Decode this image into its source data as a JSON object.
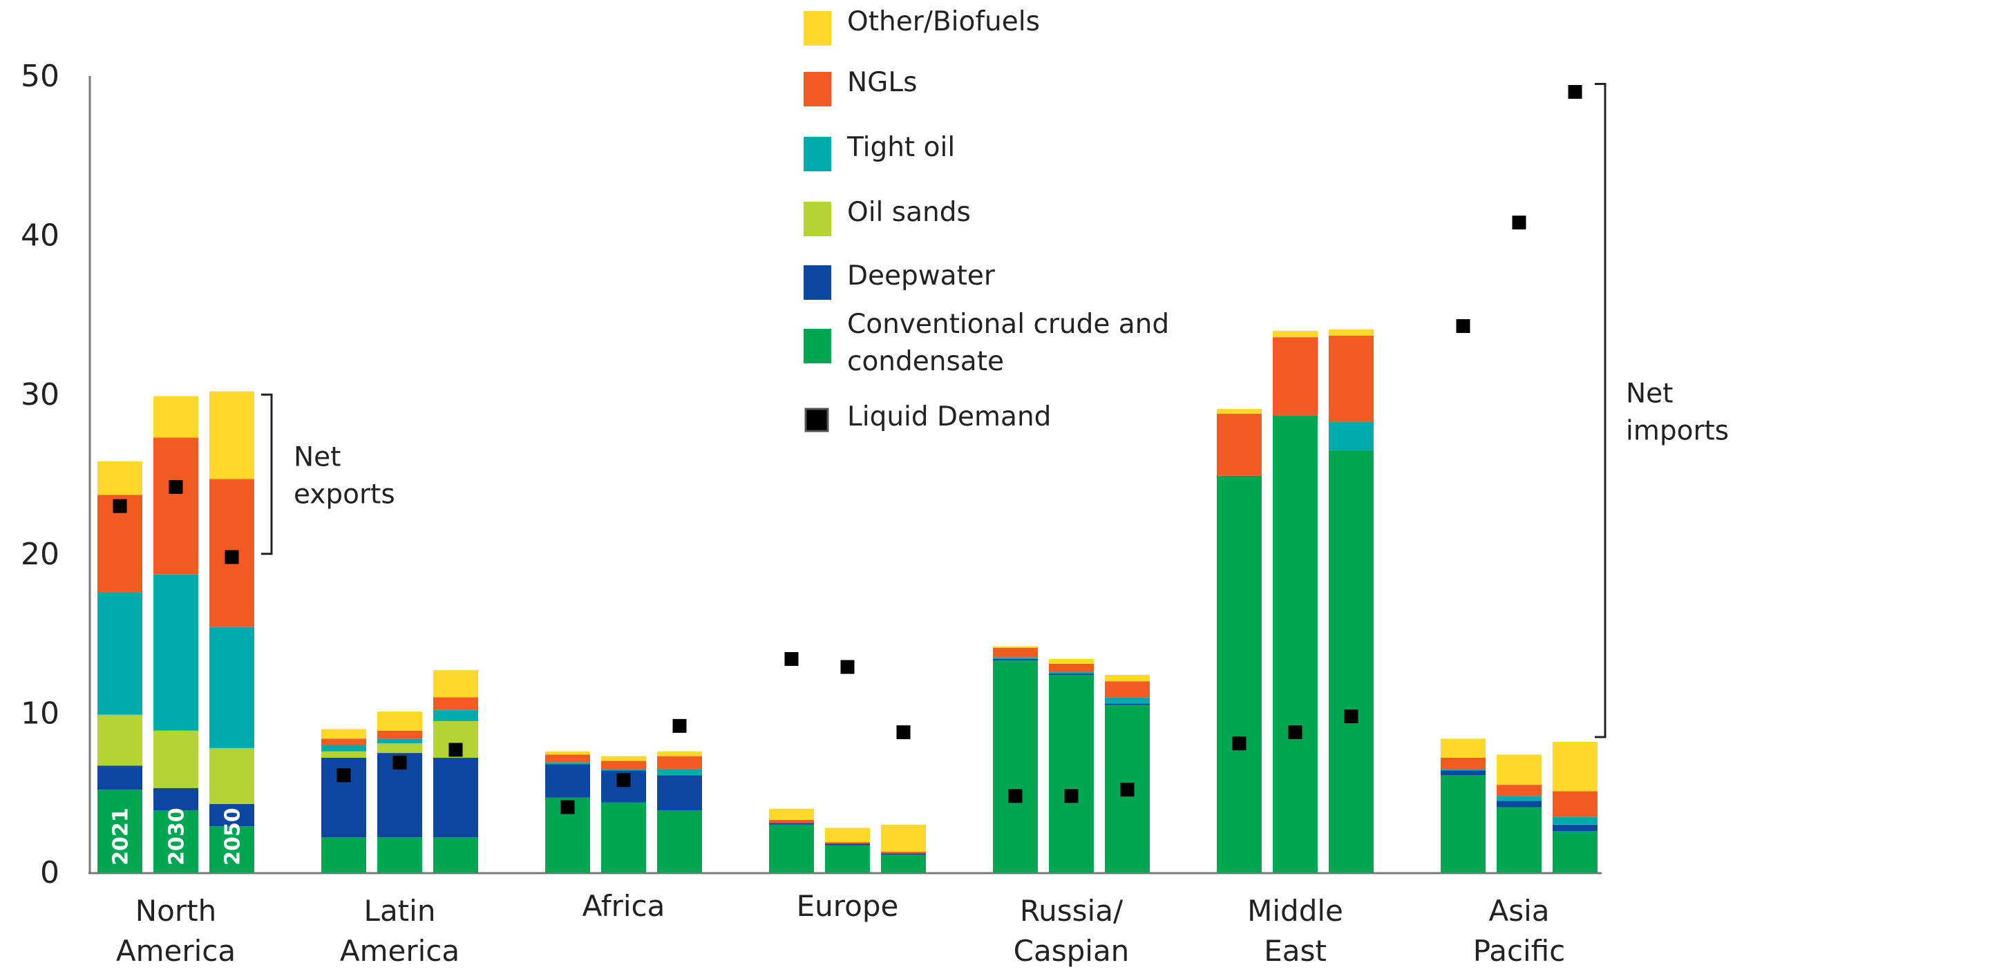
{
  "chart_data": {
    "type": "bar",
    "stacked": true,
    "ylim": [
      0,
      50
    ],
    "yticks": [
      0,
      10,
      20,
      30,
      40,
      50
    ],
    "grid": false,
    "legend_position": "top-center",
    "regions": [
      {
        "label_lines": [
          "North",
          "America"
        ],
        "years": [
          "2021",
          "2030",
          "2050"
        ]
      },
      {
        "label_lines": [
          "Latin",
          "America"
        ],
        "years": [
          "2021",
          "2030",
          "2050"
        ]
      },
      {
        "label_lines": [
          "Africa"
        ],
        "years": [
          "2021",
          "2030",
          "2050"
        ]
      },
      {
        "label_lines": [
          "Europe"
        ],
        "years": [
          "2021",
          "2030",
          "2050"
        ]
      },
      {
        "label_lines": [
          "Russia/",
          "Caspian"
        ],
        "years": [
          "2021",
          "2030",
          "2050"
        ]
      },
      {
        "label_lines": [
          "Middle",
          "East"
        ],
        "years": [
          "2021",
          "2030",
          "2050"
        ]
      },
      {
        "label_lines": [
          "Asia",
          "Pacific"
        ],
        "years": [
          "2021",
          "2030",
          "2050"
        ]
      }
    ],
    "year_labels_region": 0,
    "series": [
      {
        "name": "Conventional crude and condensate",
        "color": "#00A651",
        "values": [
          [
            5.2,
            3.9,
            2.9
          ],
          [
            2.2,
            2.2,
            2.2
          ],
          [
            4.7,
            4.4,
            3.9
          ],
          [
            3.0,
            1.7,
            1.1
          ],
          [
            13.3,
            12.4,
            10.5
          ],
          [
            24.9,
            28.7,
            26.5
          ],
          [
            6.1,
            4.1,
            2.6
          ]
        ]
      },
      {
        "name": "Deepwater",
        "color": "#0D47A1",
        "values": [
          [
            1.5,
            1.4,
            1.4
          ],
          [
            5.0,
            5.3,
            5.0
          ],
          [
            2.1,
            2.0,
            2.2
          ],
          [
            0.1,
            0.1,
            0.1
          ],
          [
            0.1,
            0.1,
            0.1
          ],
          [
            0.0,
            0.0,
            0.0
          ],
          [
            0.3,
            0.4,
            0.4
          ]
        ]
      },
      {
        "name": "Oil sands",
        "color": "#B5D334",
        "values": [
          [
            3.2,
            3.6,
            3.5
          ],
          [
            0.4,
            0.6,
            2.3
          ],
          [
            0.0,
            0.0,
            0.0
          ],
          [
            0.0,
            0.0,
            0.0
          ],
          [
            0.0,
            0.0,
            0.0
          ],
          [
            0.0,
            0.0,
            0.0
          ],
          [
            0.0,
            0.0,
            0.0
          ]
        ]
      },
      {
        "name": "Tight oil",
        "color": "#00ACAC",
        "values": [
          [
            7.7,
            9.8,
            7.6
          ],
          [
            0.4,
            0.3,
            0.7
          ],
          [
            0.1,
            0.1,
            0.4
          ],
          [
            0.0,
            0.0,
            0.0
          ],
          [
            0.1,
            0.1,
            0.4
          ],
          [
            0.0,
            0.0,
            1.8
          ],
          [
            0.1,
            0.3,
            0.5
          ]
        ]
      },
      {
        "name": "NGLs",
        "color": "#F15A22",
        "values": [
          [
            6.1,
            8.6,
            9.3
          ],
          [
            0.4,
            0.5,
            0.8
          ],
          [
            0.5,
            0.5,
            0.8
          ],
          [
            0.2,
            0.1,
            0.1
          ],
          [
            0.6,
            0.5,
            1.0
          ],
          [
            3.9,
            4.9,
            5.4
          ],
          [
            0.7,
            0.7,
            1.6
          ]
        ]
      },
      {
        "name": "Other/Biofuels",
        "color": "#FFD928",
        "values": [
          [
            2.1,
            2.6,
            5.5
          ],
          [
            0.6,
            1.2,
            1.7
          ],
          [
            0.2,
            0.3,
            0.3
          ],
          [
            0.7,
            0.9,
            1.7
          ],
          [
            0.1,
            0.3,
            0.4
          ],
          [
            0.3,
            0.4,
            0.4
          ],
          [
            1.2,
            1.9,
            3.1
          ]
        ]
      }
    ],
    "liquid_demand": {
      "name": "Liquid Demand",
      "color": "#000000",
      "values": [
        [
          23.0,
          24.2,
          19.8
        ],
        [
          6.1,
          6.9,
          7.7
        ],
        [
          4.1,
          5.8,
          9.2
        ],
        [
          13.4,
          12.9,
          8.8
        ],
        [
          4.8,
          4.8,
          5.2
        ],
        [
          8.1,
          8.8,
          9.8
        ],
        [
          34.3,
          40.8,
          49.0
        ]
      ]
    },
    "legend": [
      {
        "label": "Other/Biofuels",
        "color": "#FFD928",
        "marker": "box"
      },
      {
        "label": "NGLs",
        "color": "#F15A22",
        "marker": "box"
      },
      {
        "label": "Tight oil",
        "color": "#00ACAC",
        "marker": "box"
      },
      {
        "label": "Oil sands",
        "color": "#B5D334",
        "marker": "box"
      },
      {
        "label": "Deepwater",
        "color": "#0D47A1",
        "marker": "box"
      },
      {
        "label_lines": [
          "Conventional crude and",
          "condensate"
        ],
        "color": "#00A651",
        "marker": "box"
      },
      {
        "label": "Liquid Demand",
        "color": "#000000",
        "marker": "square"
      }
    ],
    "annotations": [
      {
        "text_lines": [
          "Net",
          "exports"
        ],
        "bracket_from": 20,
        "bracket_to": 30
      },
      {
        "text_lines": [
          "Net",
          "imports"
        ],
        "bracket_from": 8.5,
        "bracket_to": 49.5
      }
    ]
  }
}
